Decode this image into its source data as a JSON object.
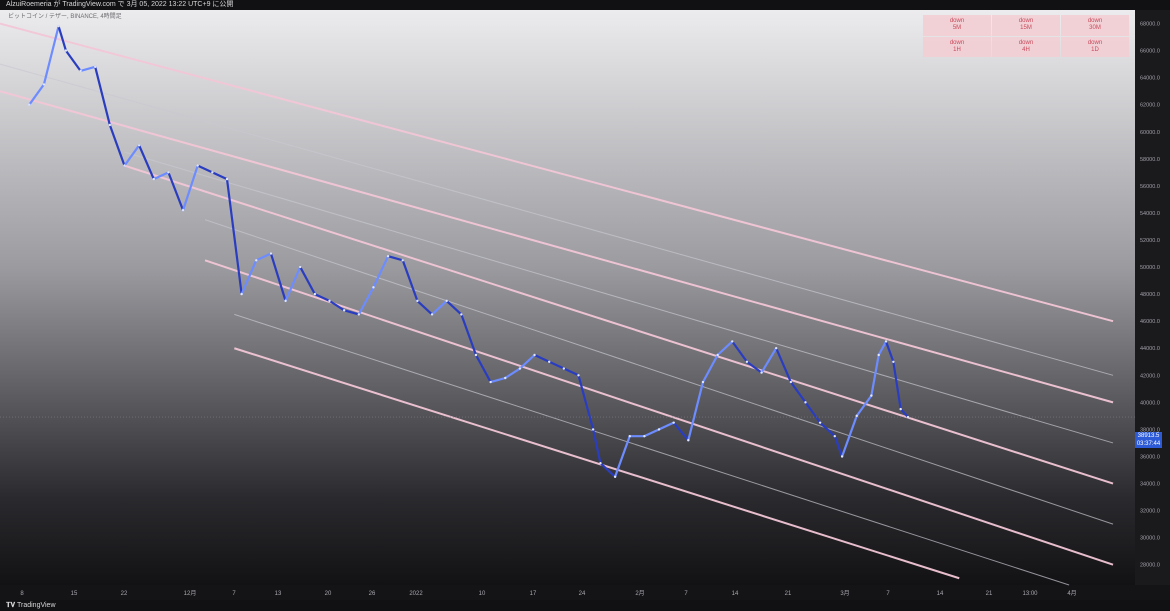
{
  "header": {
    "title": "AlzuiRoemeria が TradingView.com で 3月 05, 2022 13:22 UTC+9 に公開",
    "symbol": "ビットコイン / テザー, BINANCE, 4時間足"
  },
  "footer": {
    "brand": "TradingView"
  },
  "timeframes": [
    {
      "label": "down",
      "tf": "5M"
    },
    {
      "label": "down",
      "tf": "15M"
    },
    {
      "label": "down",
      "tf": "30M"
    },
    {
      "label": "down",
      "tf": "1H"
    },
    {
      "label": "down",
      "tf": "4H"
    },
    {
      "label": "down",
      "tf": "1D"
    }
  ],
  "price_tag": {
    "price": "38913.5",
    "countdown": "03:37:44"
  },
  "colors": {
    "candle_up": "#6d8cff",
    "candle_down": "#2a3dc0",
    "channel_main": "#f2c6d6",
    "channel_sub": "#c8c8d0",
    "price_tag": "#2d5bd7"
  },
  "chart_data": {
    "type": "line",
    "title": "",
    "xlabel": "",
    "ylabel": "",
    "ylim": [
      26500,
      69000
    ],
    "xticks": [
      "8",
      "15",
      "22",
      "12月",
      "7",
      "13",
      "20",
      "26",
      "2022",
      "10",
      "17",
      "24",
      "2月",
      "7",
      "14",
      "21",
      "3月",
      "7",
      "14",
      "21",
      "13:00",
      "4月"
    ],
    "yticks": [
      "28000.0",
      "30000.0",
      "32000.0",
      "34000.0",
      "36000.0",
      "38000.0",
      "40000.0",
      "42000.0",
      "44000.0",
      "46000.0",
      "48000.0",
      "50000.0",
      "52000.0",
      "54000.0",
      "56000.0",
      "58000.0",
      "60000.0",
      "62000.0",
      "64000.0",
      "66000.0",
      "68000.0"
    ],
    "series": [
      {
        "values": [
          {
            "t": "2021-11-05",
            "p": 62000
          },
          {
            "t": "2021-11-07",
            "p": 63500
          },
          {
            "t": "2021-11-09",
            "p": 67800
          },
          {
            "t": "2021-11-10",
            "p": 66000
          },
          {
            "t": "2021-11-12",
            "p": 64500
          },
          {
            "t": "2021-11-14",
            "p": 64800
          },
          {
            "t": "2021-11-16",
            "p": 60500
          },
          {
            "t": "2021-11-18",
            "p": 57500
          },
          {
            "t": "2021-11-20",
            "p": 59000
          },
          {
            "t": "2021-11-22",
            "p": 56500
          },
          {
            "t": "2021-11-24",
            "p": 57000
          },
          {
            "t": "2021-11-26",
            "p": 54200
          },
          {
            "t": "2021-11-28",
            "p": 57500
          },
          {
            "t": "2021-11-30",
            "p": 57000
          },
          {
            "t": "2021-12-02",
            "p": 56500
          },
          {
            "t": "2021-12-04",
            "p": 48000
          },
          {
            "t": "2021-12-06",
            "p": 50500
          },
          {
            "t": "2021-12-08",
            "p": 51000
          },
          {
            "t": "2021-12-10",
            "p": 47500
          },
          {
            "t": "2021-12-12",
            "p": 50000
          },
          {
            "t": "2021-12-14",
            "p": 48000
          },
          {
            "t": "2021-12-16",
            "p": 47500
          },
          {
            "t": "2021-12-18",
            "p": 46800
          },
          {
            "t": "2021-12-20",
            "p": 46500
          },
          {
            "t": "2021-12-22",
            "p": 48500
          },
          {
            "t": "2021-12-24",
            "p": 50800
          },
          {
            "t": "2021-12-26",
            "p": 50500
          },
          {
            "t": "2021-12-28",
            "p": 47500
          },
          {
            "t": "2021-12-30",
            "p": 46500
          },
          {
            "t": "2022-01-01",
            "p": 47500
          },
          {
            "t": "2022-01-03",
            "p": 46500
          },
          {
            "t": "2022-01-05",
            "p": 43500
          },
          {
            "t": "2022-01-07",
            "p": 41500
          },
          {
            "t": "2022-01-09",
            "p": 41800
          },
          {
            "t": "2022-01-11",
            "p": 42500
          },
          {
            "t": "2022-01-13",
            "p": 43500
          },
          {
            "t": "2022-01-15",
            "p": 43000
          },
          {
            "t": "2022-01-17",
            "p": 42500
          },
          {
            "t": "2022-01-19",
            "p": 42000
          },
          {
            "t": "2022-01-21",
            "p": 38000
          },
          {
            "t": "2022-01-22",
            "p": 35500
          },
          {
            "t": "2022-01-24",
            "p": 34500
          },
          {
            "t": "2022-01-26",
            "p": 37500
          },
          {
            "t": "2022-01-28",
            "p": 37500
          },
          {
            "t": "2022-01-30",
            "p": 38000
          },
          {
            "t": "2022-02-01",
            "p": 38500
          },
          {
            "t": "2022-02-03",
            "p": 37200
          },
          {
            "t": "2022-02-05",
            "p": 41500
          },
          {
            "t": "2022-02-07",
            "p": 43500
          },
          {
            "t": "2022-02-09",
            "p": 44500
          },
          {
            "t": "2022-02-11",
            "p": 43000
          },
          {
            "t": "2022-02-13",
            "p": 42200
          },
          {
            "t": "2022-02-15",
            "p": 44000
          },
          {
            "t": "2022-02-17",
            "p": 41500
          },
          {
            "t": "2022-02-19",
            "p": 40000
          },
          {
            "t": "2022-02-21",
            "p": 38500
          },
          {
            "t": "2022-02-23",
            "p": 37500
          },
          {
            "t": "2022-02-24",
            "p": 36000
          },
          {
            "t": "2022-02-26",
            "p": 39000
          },
          {
            "t": "2022-02-28",
            "p": 40500
          },
          {
            "t": "2022-03-01",
            "p": 43500
          },
          {
            "t": "2022-03-02",
            "p": 44500
          },
          {
            "t": "2022-03-03",
            "p": 43000
          },
          {
            "t": "2022-03-04",
            "p": 39500
          },
          {
            "t": "2022-03-05",
            "p": 38913.5
          }
        ]
      }
    ],
    "channel_lines": [
      {
        "name": "upper",
        "from": {
          "t": "2021-11-01",
          "p": 68000
        },
        "to": {
          "t": "2022-04-02",
          "p": 46000
        },
        "style": "main"
      },
      {
        "name": "upper-mid",
        "from": {
          "t": "2021-11-01",
          "p": 65000
        },
        "to": {
          "t": "2022-04-02",
          "p": 42000
        },
        "style": "sub"
      },
      {
        "name": "middle",
        "from": {
          "t": "2021-11-01",
          "p": 63000
        },
        "to": {
          "t": "2022-04-02",
          "p": 40000
        },
        "style": "main"
      },
      {
        "name": "mid-sub",
        "from": {
          "t": "2021-11-18",
          "p": 58500
        },
        "to": {
          "t": "2022-04-02",
          "p": 37000
        },
        "style": "sub"
      },
      {
        "name": "lower",
        "from": {
          "t": "2021-11-18",
          "p": 57500
        },
        "to": {
          "t": "2022-04-02",
          "p": 34000
        },
        "style": "main"
      },
      {
        "name": "lower-sub",
        "from": {
          "t": "2021-11-29",
          "p": 53500
        },
        "to": {
          "t": "2022-04-02",
          "p": 31000
        },
        "style": "sub"
      },
      {
        "name": "lower-2",
        "from": {
          "t": "2021-11-29",
          "p": 50500
        },
        "to": {
          "t": "2022-04-02",
          "p": 28000
        },
        "style": "main"
      },
      {
        "name": "lower-2-sub",
        "from": {
          "t": "2021-12-03",
          "p": 46500
        },
        "to": {
          "t": "2022-03-27",
          "p": 26500
        },
        "style": "sub"
      },
      {
        "name": "lower-3",
        "from": {
          "t": "2021-12-03",
          "p": 44000
        },
        "to": {
          "t": "2022-03-12",
          "p": 27000
        },
        "style": "main"
      }
    ],
    "grid": false,
    "legend": "top-right"
  }
}
